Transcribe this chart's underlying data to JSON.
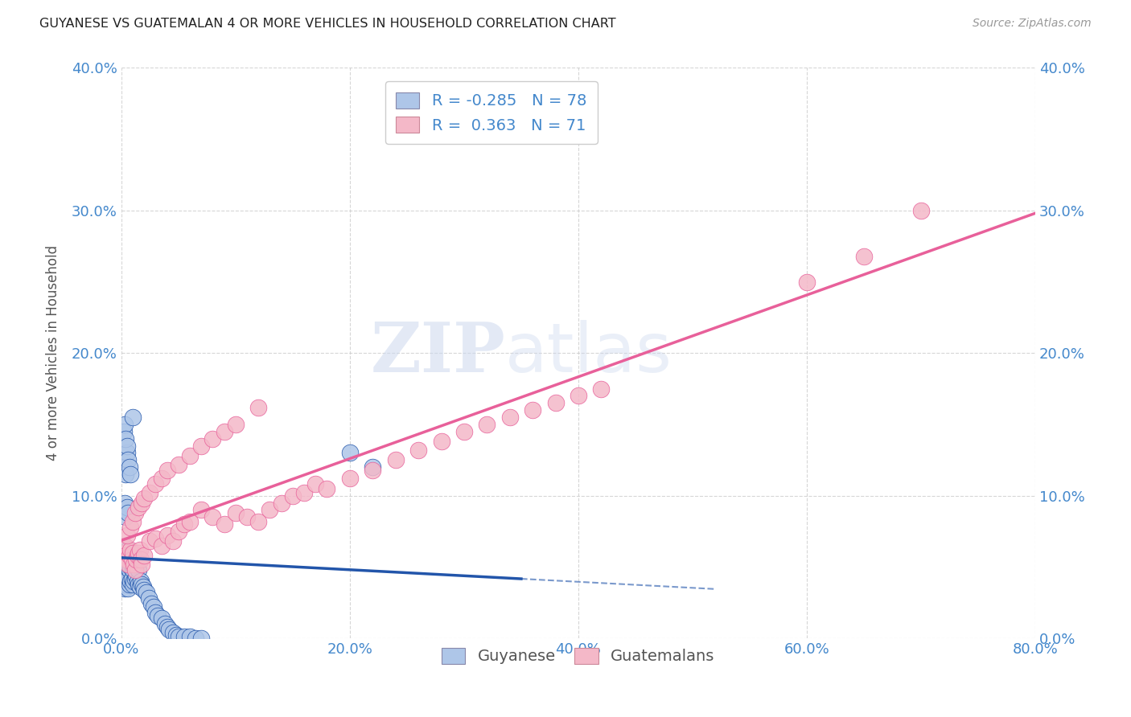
{
  "title": "GUYANESE VS GUATEMALAN 4 OR MORE VEHICLES IN HOUSEHOLD CORRELATION CHART",
  "source": "Source: ZipAtlas.com",
  "ylabel": "4 or more Vehicles in Household",
  "xlabel": "",
  "legend_label1": "Guyanese",
  "legend_label2": "Guatemalans",
  "r1": -0.285,
  "n1": 78,
  "r2": 0.363,
  "n2": 71,
  "color1": "#aec6e8",
  "color2": "#f4b8c8",
  "line_color1": "#2255aa",
  "line_color2": "#e8609a",
  "watermark_zip": "ZIP",
  "watermark_atlas": "atlas",
  "xlim": [
    0.0,
    0.8
  ],
  "ylim": [
    0.0,
    0.4
  ],
  "xticks": [
    0.0,
    0.2,
    0.4,
    0.6,
    0.8
  ],
  "yticks": [
    0.0,
    0.1,
    0.2,
    0.3,
    0.4
  ],
  "bg_color": "#ffffff",
  "title_color": "#222222",
  "source_color": "#999999",
  "tick_color": "#4488cc",
  "legend_r_color": "#4488cc",
  "guyanese_x": [
    0.001,
    0.001,
    0.002,
    0.002,
    0.002,
    0.003,
    0.003,
    0.003,
    0.003,
    0.004,
    0.004,
    0.004,
    0.005,
    0.005,
    0.005,
    0.006,
    0.006,
    0.006,
    0.006,
    0.007,
    0.007,
    0.007,
    0.008,
    0.008,
    0.008,
    0.009,
    0.009,
    0.01,
    0.01,
    0.01,
    0.011,
    0.011,
    0.012,
    0.012,
    0.013,
    0.014,
    0.015,
    0.015,
    0.016,
    0.017,
    0.018,
    0.019,
    0.02,
    0.022,
    0.024,
    0.026,
    0.028,
    0.03,
    0.032,
    0.035,
    0.038,
    0.04,
    0.042,
    0.045,
    0.048,
    0.05,
    0.055,
    0.06,
    0.065,
    0.07,
    0.002,
    0.003,
    0.004,
    0.005,
    0.006,
    0.003,
    0.004,
    0.005,
    0.002,
    0.003,
    0.004,
    0.005,
    0.006,
    0.007,
    0.008,
    0.2,
    0.22,
    0.01
  ],
  "guyanese_y": [
    0.045,
    0.055,
    0.04,
    0.05,
    0.06,
    0.035,
    0.045,
    0.055,
    0.065,
    0.038,
    0.048,
    0.058,
    0.04,
    0.05,
    0.06,
    0.035,
    0.042,
    0.052,
    0.062,
    0.038,
    0.048,
    0.058,
    0.04,
    0.05,
    0.06,
    0.042,
    0.052,
    0.038,
    0.048,
    0.058,
    0.04,
    0.05,
    0.042,
    0.052,
    0.044,
    0.04,
    0.038,
    0.048,
    0.036,
    0.04,
    0.038,
    0.036,
    0.034,
    0.032,
    0.028,
    0.024,
    0.022,
    0.018,
    0.016,
    0.014,
    0.01,
    0.008,
    0.006,
    0.004,
    0.002,
    0.001,
    0.001,
    0.001,
    0.0,
    0.0,
    0.09,
    0.095,
    0.085,
    0.092,
    0.088,
    0.12,
    0.115,
    0.13,
    0.145,
    0.15,
    0.14,
    0.135,
    0.125,
    0.12,
    0.115,
    0.13,
    0.12,
    0.155
  ],
  "guatemalan_x": [
    0.002,
    0.003,
    0.004,
    0.005,
    0.006,
    0.007,
    0.008,
    0.009,
    0.01,
    0.011,
    0.012,
    0.013,
    0.014,
    0.015,
    0.016,
    0.017,
    0.018,
    0.02,
    0.025,
    0.03,
    0.035,
    0.04,
    0.045,
    0.05,
    0.055,
    0.06,
    0.07,
    0.08,
    0.09,
    0.1,
    0.11,
    0.12,
    0.13,
    0.14,
    0.15,
    0.16,
    0.17,
    0.18,
    0.2,
    0.22,
    0.24,
    0.26,
    0.28,
    0.3,
    0.32,
    0.34,
    0.36,
    0.38,
    0.4,
    0.42,
    0.005,
    0.008,
    0.01,
    0.012,
    0.015,
    0.018,
    0.02,
    0.025,
    0.03,
    0.035,
    0.04,
    0.05,
    0.06,
    0.07,
    0.08,
    0.09,
    0.1,
    0.12,
    0.6,
    0.65,
    0.7
  ],
  "guatemalan_y": [
    0.06,
    0.065,
    0.058,
    0.055,
    0.052,
    0.058,
    0.062,
    0.055,
    0.06,
    0.052,
    0.048,
    0.055,
    0.058,
    0.06,
    0.062,
    0.055,
    0.052,
    0.058,
    0.068,
    0.07,
    0.065,
    0.072,
    0.068,
    0.075,
    0.08,
    0.082,
    0.09,
    0.085,
    0.08,
    0.088,
    0.085,
    0.082,
    0.09,
    0.095,
    0.1,
    0.102,
    0.108,
    0.105,
    0.112,
    0.118,
    0.125,
    0.132,
    0.138,
    0.145,
    0.15,
    0.155,
    0.16,
    0.165,
    0.17,
    0.175,
    0.072,
    0.078,
    0.082,
    0.088,
    0.092,
    0.095,
    0.098,
    0.102,
    0.108,
    0.112,
    0.118,
    0.122,
    0.128,
    0.135,
    0.14,
    0.145,
    0.15,
    0.162,
    0.25,
    0.268,
    0.3
  ]
}
